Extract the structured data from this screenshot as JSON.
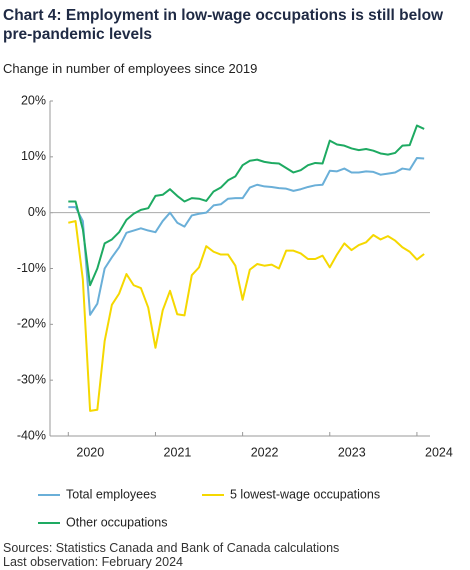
{
  "chart_data": {
    "type": "line",
    "title": "Chart 4: Employment in low-wage occupations is still below pre-pandemic levels",
    "subtitle": "Change in number of employees since 2019",
    "sources": "Sources: Statistics Canada and Bank of Canada calculations",
    "note": "Last observation: February 2024",
    "x": [
      2020.0,
      2020.083,
      2020.167,
      2020.25,
      2020.333,
      2020.417,
      2020.5,
      2020.583,
      2020.667,
      2020.75,
      2020.833,
      2020.917,
      2021.0,
      2021.083,
      2021.167,
      2021.25,
      2021.333,
      2021.417,
      2021.5,
      2021.583,
      2021.667,
      2021.75,
      2021.833,
      2021.917,
      2022.0,
      2022.083,
      2022.167,
      2022.25,
      2022.333,
      2022.417,
      2022.5,
      2022.583,
      2022.667,
      2022.75,
      2022.833,
      2022.917,
      2023.0,
      2023.083,
      2023.167,
      2023.25,
      2023.333,
      2023.417,
      2023.5,
      2023.583,
      2023.667,
      2023.75,
      2023.833,
      2023.917,
      2024.0,
      2024.083
    ],
    "series": [
      {
        "name": "Total employees",
        "color": "#6aafd8",
        "values": [
          1.0,
          1.0,
          -1.5,
          -18.3,
          -16.3,
          -10,
          -8,
          -6.2,
          -3.6,
          -3.2,
          -2.8,
          -3.2,
          -3.5,
          -1.5,
          0,
          -1.8,
          -2.5,
          -0.5,
          -0.2,
          0,
          1.3,
          1.5,
          2.5,
          2.6,
          2.6,
          4.5,
          5.0,
          4.7,
          4.6,
          4.4,
          4.3,
          3.9,
          4.2,
          4.6,
          4.9,
          5.0,
          7.5,
          7.4,
          7.9,
          7.2,
          7.2,
          7.4,
          7.3,
          6.8,
          7.0,
          7.2,
          7.9,
          7.7,
          9.8,
          9.7
        ]
      },
      {
        "name": "5 lowest-wage occupations",
        "color": "#f5d800",
        "values": [
          -1.8,
          -1.5,
          -12,
          -35.5,
          -35.3,
          -23,
          -16.5,
          -14.5,
          -11,
          -13,
          -13.5,
          -17,
          -24.2,
          -17.5,
          -14,
          -18.2,
          -18.4,
          -11.2,
          -9.8,
          -6,
          -7,
          -7.5,
          -7.5,
          -9.5,
          -15.6,
          -10.2,
          -9.2,
          -9.5,
          -9.3,
          -10,
          -6.8,
          -6.8,
          -7.3,
          -8.3,
          -8.3,
          -7.7,
          -9.8,
          -7.5,
          -5.5,
          -6.7,
          -5.8,
          -5.3,
          -4,
          -4.8,
          -4.2,
          -5,
          -6.2,
          -7,
          -8.4,
          -7.4
        ]
      },
      {
        "name": "Other occupations",
        "color": "#1eaa62",
        "values": [
          2.0,
          2.0,
          -3,
          -13,
          -10,
          -5.5,
          -4.8,
          -3.5,
          -1.3,
          -0.2,
          0.5,
          0.8,
          3.0,
          3.2,
          4.2,
          3.0,
          2.0,
          2.6,
          2.5,
          2.1,
          3.8,
          4.5,
          5.8,
          6.5,
          8.5,
          9.3,
          9.5,
          9.1,
          8.9,
          8.8,
          8.0,
          7.2,
          7.6,
          8.5,
          8.9,
          8.8,
          12.9,
          12.2,
          12.0,
          11.5,
          11.2,
          11.4,
          11.1,
          10.6,
          10.4,
          10.7,
          12.0,
          12.1,
          15.6,
          15.0
        ]
      }
    ],
    "xlim": [
      2019.79,
      2024.15
    ],
    "xticks": [
      2020,
      2021,
      2022,
      2023,
      2024
    ],
    "ylim": [
      -40,
      20
    ],
    "yticks": [
      {
        "value": -40,
        "label": "-40%"
      },
      {
        "value": -30,
        "label": "-30%"
      },
      {
        "value": -20,
        "label": "-20%"
      },
      {
        "value": -10,
        "label": "-10%"
      },
      {
        "value": 0,
        "label": "0%"
      },
      {
        "value": 10,
        "label": "10%"
      },
      {
        "value": 20,
        "label": "20%"
      }
    ],
    "zero_line": true,
    "legend": "bottom"
  }
}
